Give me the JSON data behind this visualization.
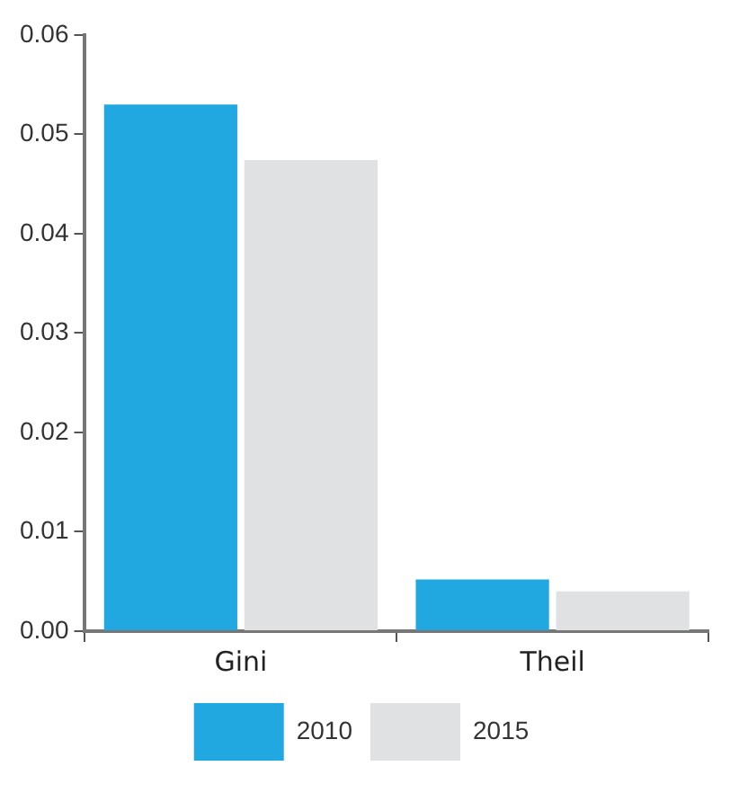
{
  "chart_data": {
    "type": "bar",
    "categories": [
      "Gini",
      "Theil"
    ],
    "series": [
      {
        "name": "2010",
        "color": "#22a8e0",
        "values": [
          0.053,
          0.0052
        ]
      },
      {
        "name": "2015",
        "color": "#e0e1e3",
        "values": [
          0.0474,
          0.004
        ]
      }
    ],
    "ylim": [
      0,
      0.06
    ],
    "yticks": [
      {
        "value": 0,
        "label": "0.00"
      },
      0.01,
      0.02,
      0.03,
      0.04,
      0.05,
      0.06
    ],
    "grid": false,
    "legend": "bottom"
  }
}
